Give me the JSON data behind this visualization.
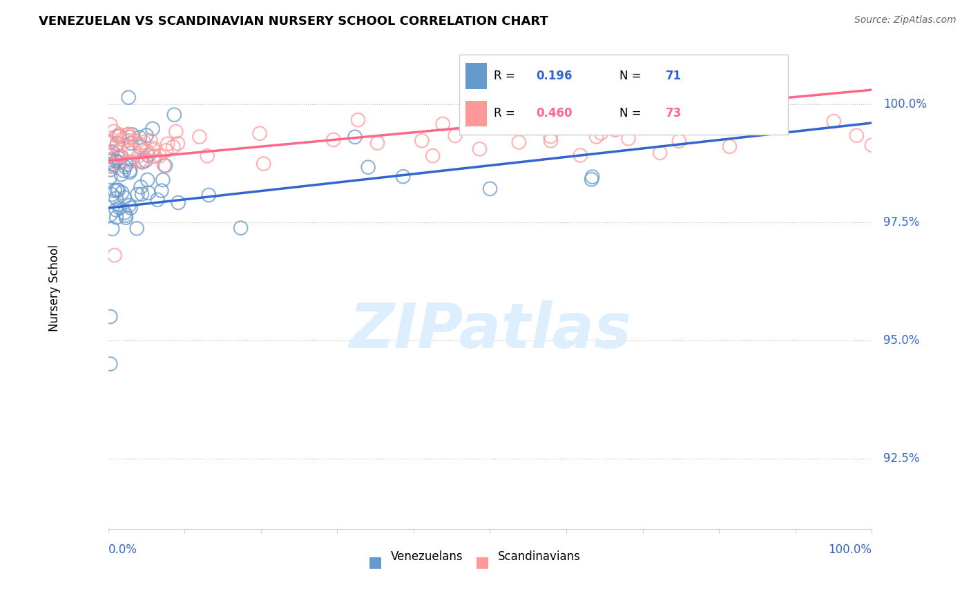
{
  "title": "VENEZUELAN VS SCANDINAVIAN NURSERY SCHOOL CORRELATION CHART",
  "source": "Source: ZipAtlas.com",
  "ylabel": "Nursery School",
  "y_ticks": [
    92.5,
    95.0,
    97.5,
    100.0
  ],
  "y_tick_labels": [
    "92.5%",
    "95.0%",
    "97.5%",
    "100.0%"
  ],
  "xlim": [
    0.0,
    100.0
  ],
  "ylim": [
    91.0,
    101.2
  ],
  "blue_R": 0.196,
  "blue_N": 71,
  "pink_R": 0.46,
  "pink_N": 73,
  "blue_color": "#6699CC",
  "pink_color": "#FF9999",
  "blue_line_color": "#3366CC",
  "pink_line_color": "#FF6688",
  "watermark_text": "ZIPatlas",
  "watermark_color": "#DDEEFF",
  "blue_trend_y0": 97.8,
  "blue_trend_y1": 99.6,
  "pink_trend_y0": 98.8,
  "pink_trend_y1": 100.3
}
